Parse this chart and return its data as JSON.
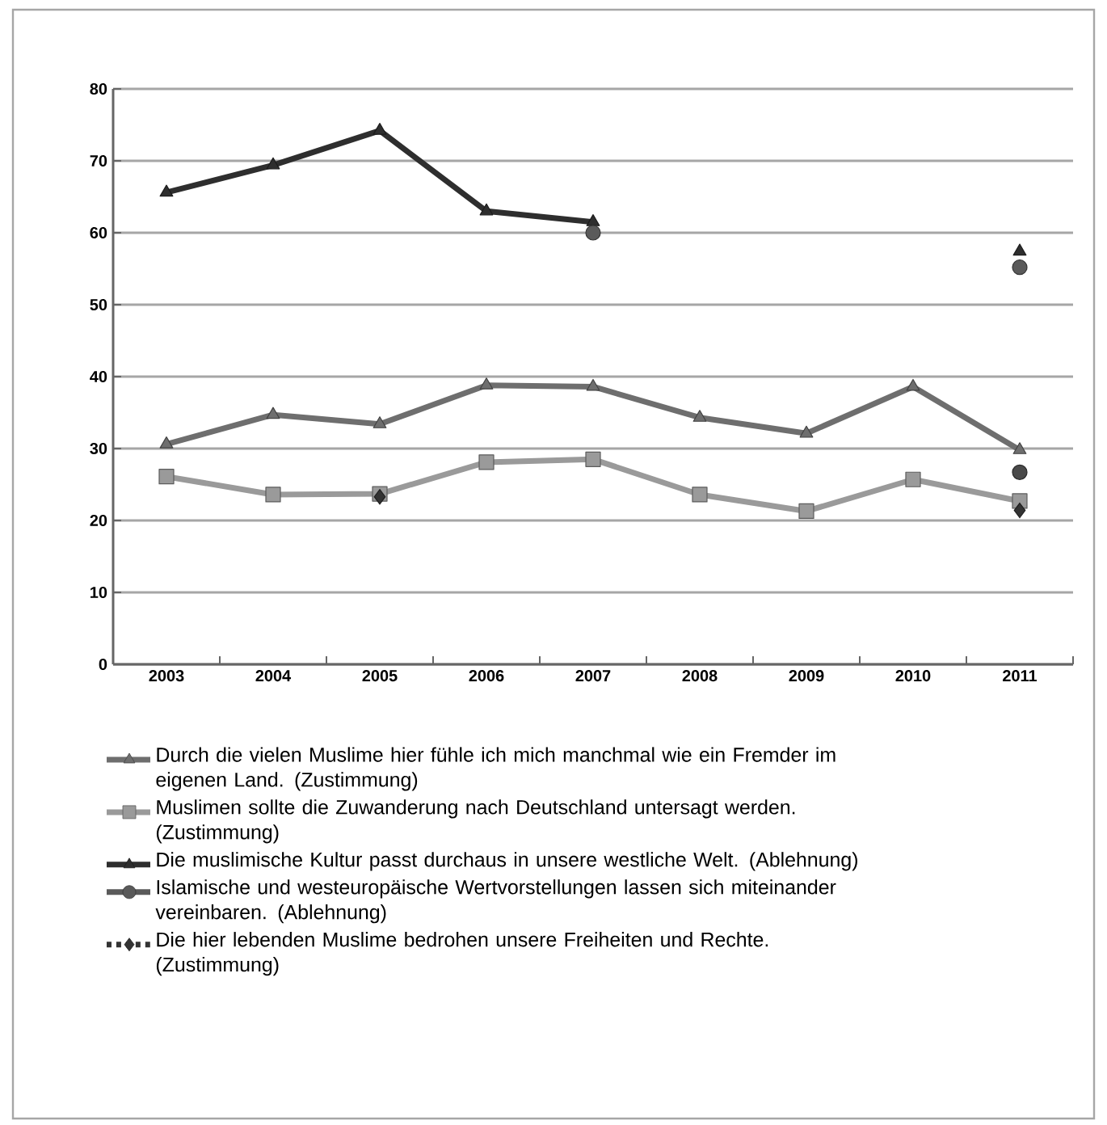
{
  "chart_data": {
    "type": "line",
    "categories": [
      "2003",
      "2004",
      "2005",
      "2006",
      "2007",
      "2008",
      "2009",
      "2010",
      "2011"
    ],
    "series": [
      {
        "name": "Durch die vielen Muslime hier fühle ich mich manchmal wie ein Fremder im eigenen Land. (Zustimmung)",
        "color": "#6e6e6e",
        "marker": "triangle",
        "values": [
          30.6,
          34.7,
          33.4,
          38.8,
          38.6,
          34.3,
          32.1,
          38.6,
          29.8
        ]
      },
      {
        "name": "Muslimen sollte die Zuwanderung nach Deutschland untersagt werden. (Zustimmung)",
        "color": "#9a9a9a",
        "marker": "square",
        "values": [
          26.1,
          23.6,
          23.7,
          28.1,
          28.5,
          23.6,
          21.3,
          25.7,
          22.7
        ]
      },
      {
        "name": "Die muslimische Kultur passt durchaus in unsere westliche Welt. (Ablehnung)",
        "color": "#2e2e2e",
        "marker": "triangle",
        "values": [
          65.6,
          69.4,
          74.2,
          63.0,
          61.5,
          null,
          null,
          null,
          57.4
        ]
      },
      {
        "name": "Islamische und westeuropäische Wertvorstellungen lassen sich miteinander vereinbaren. (Ablehnung)",
        "type": "scatter",
        "color": "#5a5a5a",
        "marker": "circle",
        "values": [
          null,
          null,
          null,
          null,
          60.0,
          null,
          null,
          null,
          55.2
        ]
      },
      {
        "name": "Die hier lebenden Muslime bedrohen unsere Freiheiten und Rechte. (Zustimmung)",
        "type": "scatter",
        "color": "#333333",
        "marker": "diamond",
        "line_style": "dashed",
        "values": [
          null,
          null,
          23.3,
          null,
          null,
          null,
          null,
          null,
          21.4
        ]
      },
      {
        "type": "scatter",
        "color": "#4a4a4a",
        "marker": "circle",
        "values": [
          null,
          null,
          null,
          null,
          null,
          null,
          null,
          null,
          26.7
        ]
      }
    ],
    "ylim": [
      0,
      80
    ],
    "yticks": [
      0,
      10,
      20,
      30,
      40,
      50,
      60,
      70,
      80
    ],
    "grid": "y",
    "legend": "bottom"
  }
}
